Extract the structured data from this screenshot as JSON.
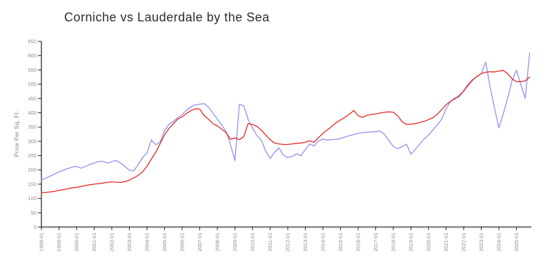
{
  "title": "Corniche vs Lauderdale by the Sea",
  "chart_data": {
    "type": "line",
    "title": "Corniche vs Lauderdale by the Sea",
    "xlabel": "",
    "ylabel": "Price Per Sq. Ft.",
    "ylim": [
      0,
      650
    ],
    "y_ticks": [
      0,
      50,
      100,
      150,
      200,
      250,
      300,
      350,
      400,
      450,
      500,
      550,
      600,
      650
    ],
    "x_tick_labels": [
      "1998-01",
      "1999-01",
      "2000-01",
      "2001-01",
      "2002-01",
      "2003-01",
      "2004-01",
      "2005-01",
      "2006-01",
      "2007-01",
      "2008-01",
      "2009-01",
      "2010-01",
      "2011-01",
      "2012-01",
      "2013-01",
      "2014-01",
      "2015-01",
      "2016-01",
      "2017-01",
      "2018-01",
      "2019-01",
      "2020-01",
      "2021-01",
      "2022-01",
      "2023-01",
      "2024-01",
      "2025-01"
    ],
    "x_start_year": 1998,
    "points_per_year": 4,
    "grid": false,
    "legend_position": "none",
    "axis_color": "#1a1a1a",
    "tick_label_color": "#8a8a8a",
    "minor_tick_color": "#c9c9c9",
    "series": [
      {
        "name": "Corniche",
        "color": "#8f8fef",
        "values": [
          165,
          171,
          178,
          186,
          193,
          199,
          205,
          210,
          212,
          206,
          212,
          219,
          224,
          229,
          230,
          224,
          229,
          233,
          224,
          212,
          199,
          197,
          219,
          243,
          260,
          305,
          288,
          298,
          338,
          360,
          370,
          383,
          394,
          409,
          421,
          428,
          430,
          432,
          420,
          399,
          378,
          357,
          335,
          287,
          233,
          430,
          424,
          377,
          347,
          320,
          304,
          265,
          240,
          262,
          277,
          252,
          243,
          247,
          256,
          250,
          271,
          291,
          284,
          301,
          308,
          304,
          306,
          307,
          310,
          315,
          320,
          324,
          328,
          330,
          332,
          333,
          334,
          336,
          324,
          303,
          282,
          274,
          282,
          290,
          255,
          272,
          290,
          308,
          322,
          340,
          358,
          378,
          414,
          440,
          452,
          455,
          478,
          500,
          516,
          527,
          537,
          578,
          490,
          418,
          347,
          396,
          452,
          512,
          549,
          498,
          451,
          610
        ]
      },
      {
        "name": "Lauderdale by the Sea",
        "color": "#e22521",
        "values": [
          120,
          121,
          123,
          125,
          128,
          131,
          134,
          137,
          139,
          142,
          145,
          148,
          150,
          152,
          154,
          156,
          158,
          157,
          156,
          159,
          164,
          172,
          181,
          193,
          213,
          238,
          262,
          292,
          323,
          345,
          362,
          378,
          386,
          398,
          408,
          414,
          413,
          390,
          377,
          362,
          354,
          343,
          330,
          307,
          312,
          306,
          316,
          362,
          359,
          352,
          339,
          322,
          306,
          294,
          291,
          289,
          289,
          291,
          293,
          294,
          297,
          302,
          297,
          313,
          328,
          340,
          352,
          365,
          375,
          384,
          395,
          408,
          390,
          384,
          391,
          394,
          396,
          399,
          402,
          403,
          402,
          389,
          369,
          359,
          360,
          362,
          366,
          370,
          376,
          383,
          395,
          411,
          428,
          440,
          449,
          461,
          476,
          496,
          514,
          527,
          537,
          542,
          544,
          543,
          546,
          548,
          537,
          519,
          509,
          509,
          512,
          525
        ]
      }
    ]
  }
}
